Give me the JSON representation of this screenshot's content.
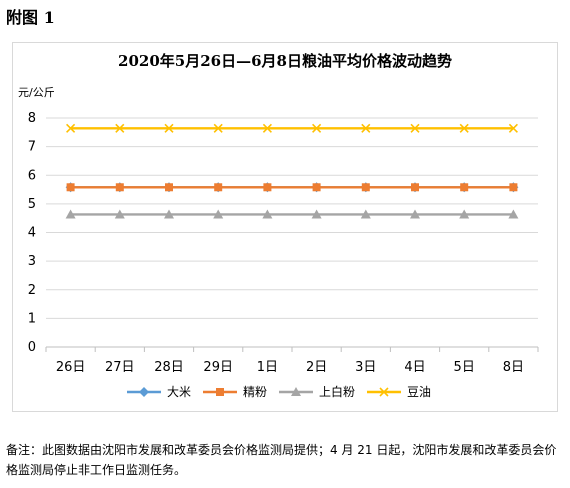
{
  "page": {
    "heading": "附图 1",
    "note": "备注：此图数据由沈阳市发展和改革委员会价格监测局提供；4 月 21 日起，沈阳市发展和改革委员会价格监测局停止非工作日监测任务。"
  },
  "chart_data": {
    "type": "line",
    "title": "2020年5月26日—6月8日粮油平均价格波动趋势",
    "ylabel": "元/公斤",
    "xlabel": "",
    "categories": [
      "26日",
      "27日",
      "28日",
      "29日",
      "1日",
      "2日",
      "3日",
      "4日",
      "5日",
      "8日"
    ],
    "ylim": [
      0,
      8
    ],
    "yticks": [
      0,
      1,
      2,
      3,
      4,
      5,
      6,
      7,
      8
    ],
    "grid": true,
    "legend_position": "bottom",
    "series": [
      {
        "name": "大米",
        "color": "#5b9bd5",
        "marker": "diamond",
        "values": [
          5.58,
          5.58,
          5.58,
          5.58,
          5.58,
          5.58,
          5.58,
          5.58,
          5.58,
          5.58
        ]
      },
      {
        "name": "精粉",
        "color": "#ed7d31",
        "marker": "square",
        "values": [
          5.58,
          5.58,
          5.58,
          5.58,
          5.58,
          5.58,
          5.58,
          5.58,
          5.58,
          5.58
        ]
      },
      {
        "name": "上白粉",
        "color": "#a5a5a5",
        "marker": "triangle",
        "values": [
          4.63,
          4.63,
          4.63,
          4.63,
          4.63,
          4.63,
          4.63,
          4.63,
          4.63,
          4.63
        ]
      },
      {
        "name": "豆油",
        "color": "#ffc000",
        "marker": "x",
        "values": [
          7.64,
          7.64,
          7.64,
          7.64,
          7.64,
          7.64,
          7.64,
          7.64,
          7.64,
          7.64
        ]
      }
    ]
  }
}
